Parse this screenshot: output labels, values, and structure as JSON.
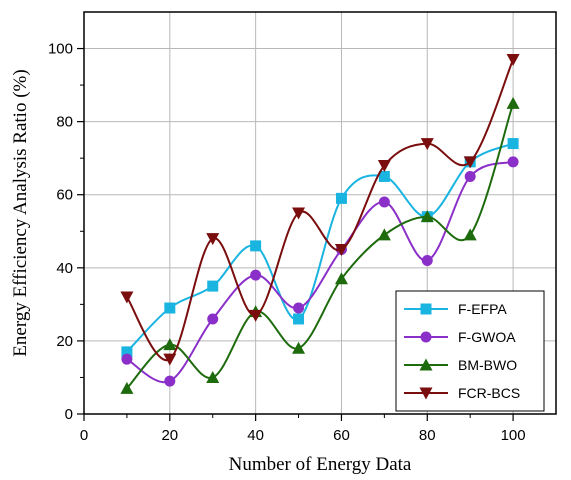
{
  "chart_data": {
    "type": "line",
    "xlabel": "Number of Energy Data",
    "ylabel": "Energy Efficiency Analysis Ratio (%)",
    "xlim": [
      0,
      110
    ],
    "ylim": [
      0,
      110
    ],
    "x_ticks": [
      0,
      20,
      40,
      60,
      80,
      100
    ],
    "y_ticks": [
      0,
      20,
      40,
      60,
      80,
      100
    ],
    "x_tick_labels": [
      "0",
      "20",
      "40",
      "60",
      "80",
      "100"
    ],
    "y_tick_labels": [
      "0",
      "20",
      "40",
      "60",
      "80",
      "100"
    ],
    "grid": true,
    "legend_position": "bottom-right",
    "x": [
      10,
      20,
      30,
      40,
      50,
      60,
      70,
      80,
      90,
      100
    ],
    "series": [
      {
        "name": "F-EFPA",
        "values": [
          17,
          29,
          35,
          46,
          26,
          59,
          65,
          54,
          69,
          74
        ],
        "color": "#1ab4e0",
        "marker": "square"
      },
      {
        "name": "F-GWOA",
        "values": [
          15,
          9,
          26,
          38,
          29,
          45,
          58,
          42,
          65,
          69
        ],
        "color": "#8b2fc9",
        "marker": "circle"
      },
      {
        "name": "BM-BWO",
        "values": [
          7,
          19,
          10,
          28,
          18,
          37,
          49,
          54,
          49,
          85
        ],
        "color": "#1e6b0e",
        "marker": "triangle-up"
      },
      {
        "name": "FCR-BCS",
        "values": [
          32,
          15,
          48,
          27,
          55,
          45,
          68,
          74,
          69,
          97
        ],
        "color": "#7a0d0d",
        "marker": "triangle-down"
      }
    ]
  }
}
